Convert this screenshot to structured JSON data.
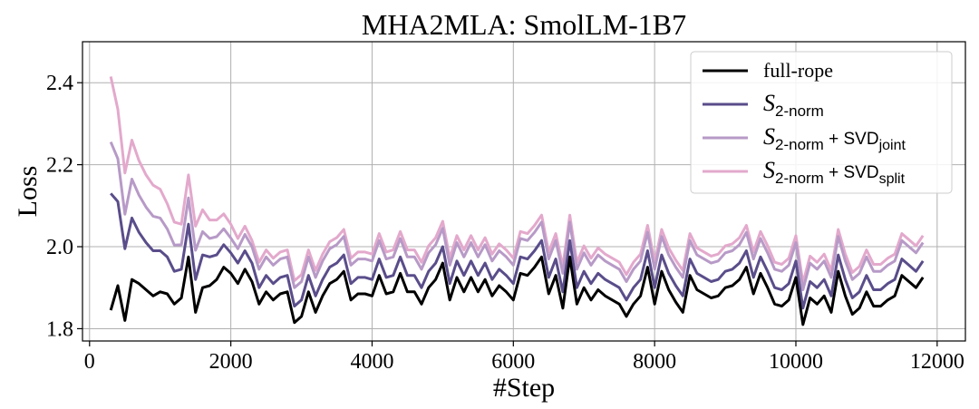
{
  "chart_data": {
    "type": "line",
    "title": "MHA2MLA: SmolLM-1B7",
    "xlabel": "#Step",
    "ylabel": "Loss",
    "xlim": [
      -100,
      12400
    ],
    "ylim": [
      1.77,
      2.5
    ],
    "xticks": [
      0,
      2000,
      4000,
      6000,
      8000,
      10000,
      12000
    ],
    "yticks": [
      1.8,
      2.0,
      2.2,
      2.4
    ],
    "ytick_labels": [
      "1.8",
      "2.0",
      "2.2",
      "2.4"
    ],
    "grid": true,
    "legend_position": "top-right",
    "x": [
      300,
      400,
      500,
      600,
      700,
      800,
      900,
      1000,
      1100,
      1200,
      1300,
      1400,
      1500,
      1600,
      1700,
      1800,
      1900,
      2000,
      2100,
      2200,
      2300,
      2400,
      2500,
      2600,
      2700,
      2800,
      2900,
      3000,
      3100,
      3200,
      3300,
      3400,
      3500,
      3600,
      3700,
      3800,
      3900,
      4000,
      4100,
      4200,
      4300,
      4400,
      4500,
      4600,
      4700,
      4800,
      4900,
      5000,
      5100,
      5200,
      5300,
      5400,
      5500,
      5600,
      5700,
      5800,
      5900,
      6000,
      6100,
      6200,
      6300,
      6400,
      6500,
      6600,
      6700,
      6800,
      6900,
      7000,
      7100,
      7200,
      7300,
      7400,
      7500,
      7600,
      7700,
      7800,
      7900,
      8000,
      8100,
      8200,
      8300,
      8400,
      8500,
      8600,
      8700,
      8800,
      8900,
      9000,
      9100,
      9200,
      9300,
      9400,
      9500,
      9600,
      9700,
      9800,
      9900,
      10000,
      10100,
      10200,
      10300,
      10400,
      10500,
      10600,
      10700,
      10800,
      10900,
      11000,
      11100,
      11200,
      11300,
      11400,
      11500,
      11600,
      11700,
      11800,
      11900
    ],
    "base": [
      1.845,
      1.905,
      1.82,
      1.92,
      1.91,
      1.895,
      1.88,
      1.89,
      1.885,
      1.86,
      1.875,
      1.975,
      1.84,
      1.9,
      1.905,
      1.92,
      1.95,
      1.935,
      1.91,
      1.945,
      1.915,
      1.86,
      1.89,
      1.87,
      1.885,
      1.89,
      1.815,
      1.83,
      1.89,
      1.84,
      1.88,
      1.91,
      1.92,
      1.94,
      1.87,
      1.885,
      1.885,
      1.88,
      1.93,
      1.885,
      1.89,
      1.935,
      1.89,
      1.89,
      1.86,
      1.9,
      1.92,
      1.96,
      1.87,
      1.925,
      1.89,
      1.925,
      1.89,
      1.92,
      1.88,
      1.905,
      1.89,
      1.87,
      1.935,
      1.93,
      1.95,
      1.975,
      1.885,
      1.93,
      1.85,
      1.975,
      1.86,
      1.9,
      1.87,
      1.895,
      1.88,
      1.87,
      1.86,
      1.83,
      1.86,
      1.88,
      1.95,
      1.86,
      1.94,
      1.895,
      1.865,
      1.84,
      1.93,
      1.895,
      1.885,
      1.875,
      1.88,
      1.9,
      1.905,
      1.92,
      1.95,
      1.885,
      1.935,
      1.9,
      1.86,
      1.855,
      1.87,
      1.925,
      1.81,
      1.875,
      1.86,
      1.88,
      1.84,
      1.94,
      1.88,
      1.835,
      1.85,
      1.89,
      1.855,
      1.855,
      1.87,
      1.88,
      1.93,
      1.915,
      1.9,
      1.925
    ],
    "offsets": [
      0,
      0.04,
      0.085,
      0.1
    ],
    "head_offsets": [
      [
        0,
        0.285,
        0.57
      ],
      [
        0,
        0.205,
        0.43
      ],
      [
        0,
        0.175,
        0.36
      ],
      [
        0,
        0.15,
        0.34
      ],
      [
        0,
        0.125,
        0.3
      ],
      [
        0,
        0.115,
        0.28
      ],
      [
        0,
        0.11,
        0.27
      ],
      [
        0,
        0.1,
        0.25
      ],
      [
        0,
        0.09,
        0.22
      ],
      [
        0,
        0.08,
        0.2
      ],
      [
        0,
        0.07,
        0.18
      ],
      [
        0,
        0.08,
        0.2
      ],
      [
        0,
        0.08,
        0.21
      ],
      [
        0,
        0.08,
        0.19
      ],
      [
        0,
        0.07,
        0.16
      ],
      [
        0,
        0.06,
        0.145
      ],
      [
        0,
        0.055,
        0.13
      ],
      [
        0,
        0.05,
        0.12
      ],
      [
        0,
        0.05,
        0.11
      ],
      [
        0,
        0.045,
        0.105
      ],
      [
        0,
        0.045,
        0.1
      ]
    ],
    "series": [
      {
        "name": "full-rope",
        "color": "#000000"
      },
      {
        "name": "S2-norm",
        "color": "#5a4d8a"
      },
      {
        "name": "S2-norm + SVDjoint",
        "color": "#b79ac7"
      },
      {
        "name": "S2-norm + SVDsplit",
        "color": "#e3a9cc"
      }
    ],
    "legend": [
      {
        "main": "full-rope"
      },
      {
        "script": "S",
        "sub": "2-norm"
      },
      {
        "script": "S",
        "sub": "2-norm",
        "plus": " + SVD",
        "sub2": "joint"
      },
      {
        "script": "S",
        "sub": "2-norm",
        "plus": " + SVD",
        "sub2": "split"
      }
    ]
  }
}
